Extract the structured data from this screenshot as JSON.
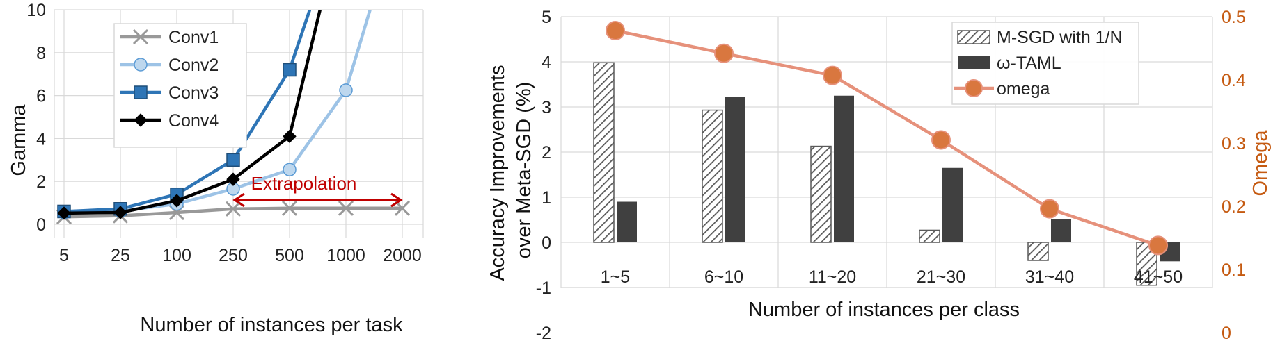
{
  "chart_data": [
    {
      "type": "line",
      "xlabel": "Number of instances per task",
      "ylabel": "Gamma",
      "categories": [
        "5",
        "25",
        "100",
        "250",
        "500",
        "1000",
        "2000"
      ],
      "ylim": [
        0,
        10
      ],
      "yticks": [
        "0",
        "2",
        "4",
        "6",
        "8",
        "10"
      ],
      "grid": true,
      "legend": "top-left",
      "series": [
        {
          "name": "Conv1",
          "color": "#999999",
          "marker": "x",
          "values": [
            0.35,
            0.4,
            0.55,
            0.72,
            0.75,
            0.75,
            0.75
          ]
        },
        {
          "name": "Conv2",
          "color": "#9dc3e6",
          "marker": "circle",
          "values": [
            0.55,
            0.62,
            0.95,
            1.65,
            2.55,
            6.25,
            15
          ]
        },
        {
          "name": "Conv3",
          "color": "#2e75b6",
          "marker": "square",
          "values": [
            0.6,
            0.72,
            1.4,
            3.0,
            7.2,
            15,
            null
          ]
        },
        {
          "name": "Conv4",
          "color": "#000000",
          "marker": "diamond",
          "values": [
            0.52,
            0.55,
            1.1,
            2.1,
            4.1,
            15,
            null
          ]
        }
      ],
      "annotation": {
        "text": "Extrapolation",
        "color": "#c00000",
        "from": "250",
        "to": "2000",
        "y": 1.35
      }
    },
    {
      "type": "bar",
      "xlabel": "Number of instances per class",
      "ylabel": "Accuracy Improvements over Meta-SGD (%)",
      "y2label": "Omega",
      "categories": [
        "1~5",
        "6~10",
        "11~20",
        "21~30",
        "31~40",
        "41~50"
      ],
      "ylim": [
        -2,
        5
      ],
      "yticks": [
        "-2",
        "-1",
        "0",
        "1",
        "2",
        "3",
        "4",
        "5"
      ],
      "y2lim": [
        0,
        0.5
      ],
      "y2ticks": [
        "0",
        "0.1",
        "0.2",
        "0.3",
        "0.4",
        "0.5"
      ],
      "y2color": "#c55a11",
      "grid": true,
      "legend": "top-right",
      "series": [
        {
          "name": "M-SGD with 1/N",
          "style": "hatched",
          "color": "#595959",
          "values": [
            3.98,
            2.93,
            2.13,
            0.27,
            -0.4,
            -0.95
          ]
        },
        {
          "name": "ω-TAML",
          "style": "solid",
          "color": "#404040",
          "values": [
            0.9,
            3.22,
            3.25,
            1.65,
            0.52,
            -0.42
          ]
        },
        {
          "name": "omega",
          "style": "line",
          "color": "#e6917b",
          "marker_color": "#d9773f",
          "axis": "right",
          "values": [
            0.478,
            0.442,
            0.407,
            0.305,
            0.196,
            0.138
          ]
        }
      ]
    }
  ]
}
